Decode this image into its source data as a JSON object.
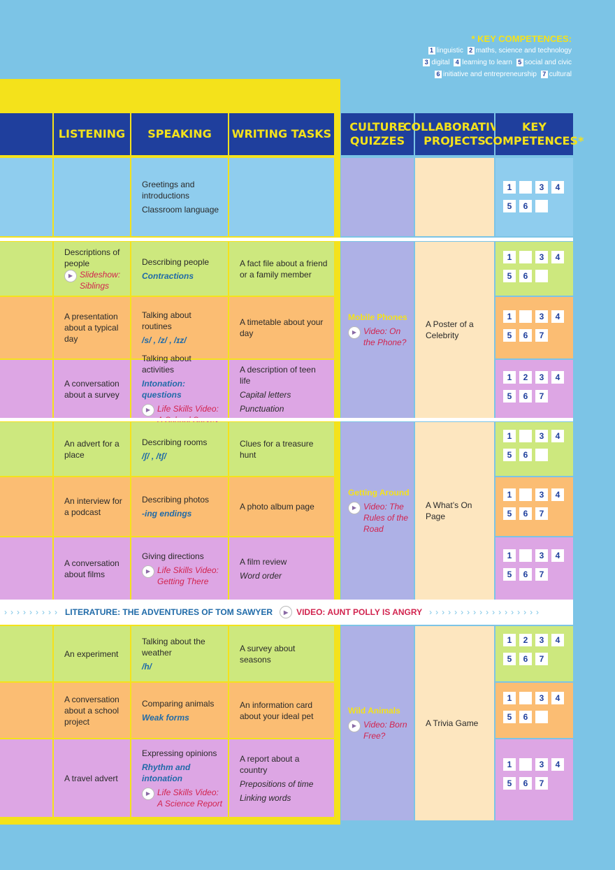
{
  "key": {
    "title": "* KEY COMPETENCES:",
    "rows": [
      [
        {
          "n": "1",
          "t": "linguistic"
        },
        {
          "n": "2",
          "t": "maths, science and technology"
        }
      ],
      [
        {
          "n": "3",
          "t": "digital"
        },
        {
          "n": "4",
          "t": "learning to learn"
        },
        {
          "n": "5",
          "t": "social and civic"
        }
      ],
      [
        {
          "n": "6",
          "t": "initiative and entrepreneurship"
        },
        {
          "n": "7",
          "t": "cultural"
        }
      ]
    ]
  },
  "headers": {
    "listening": "LISTENING",
    "speaking": "SPEAKING",
    "writing": "WRITING TASKS",
    "culture": "CULTURE QUIZZES",
    "projects": "COLLABORATIVE PROJECTS",
    "key": "KEY COMPETENCES*"
  },
  "intro": {
    "speaking": [
      "Greetings and introductions",
      "Classroom language"
    ],
    "badges": [
      "1",
      "",
      "3",
      "4",
      "5",
      "6",
      ""
    ]
  },
  "rows": [
    {
      "listening": "Descriptions of people",
      "listening_video": "Slideshow: Siblings",
      "speaking": "Describing people",
      "speaking_bold": "Contractions",
      "writing": "A fact file about a friend or a family member",
      "badges": [
        "1",
        "",
        "3",
        "4",
        "5",
        "6",
        ""
      ]
    },
    {
      "listening": "A presentation about a typical day",
      "speaking": "Talking about routines",
      "speaking_bold": "/s/ , /z/ , /ɪz/",
      "writing": "A timetable about your day",
      "badges": [
        "1",
        "",
        "3",
        "4",
        "5",
        "6",
        "7"
      ]
    },
    {
      "listening": "A conversation about a survey",
      "speaking": "Talking about activities",
      "speaking_bold": "Intonation: questions",
      "speaking_video": "Life Skills Video: A School Survey",
      "writing": "A description of teen life",
      "writing_italic": [
        "Capital letters",
        "Punctuation"
      ],
      "badges": [
        "1",
        "2",
        "3",
        "4",
        "5",
        "6",
        "7"
      ]
    },
    {
      "listening": "An advert for a place",
      "speaking": "Describing rooms",
      "speaking_bold": "/ʃ/ , /tʃ/",
      "writing": "Clues for a treasure hunt",
      "badges": [
        "1",
        "",
        "3",
        "4",
        "5",
        "6",
        ""
      ]
    },
    {
      "listening": "An interview for a podcast",
      "speaking": "Describing photos",
      "speaking_bold": "-ing endings",
      "writing": "A photo album page",
      "badges": [
        "1",
        "",
        "3",
        "4",
        "5",
        "6",
        "7"
      ]
    },
    {
      "listening": "A conversation about films",
      "speaking": "Giving directions",
      "speaking_video": "Life Skills Video: Getting There",
      "writing": "A film review",
      "writing_italic": [
        "Word order"
      ],
      "badges": [
        "1",
        "",
        "3",
        "4",
        "5",
        "6",
        "7"
      ]
    },
    {
      "listening": "An experiment",
      "speaking": "Talking about the weather",
      "speaking_bold": "/h/",
      "writing": "A survey about seasons",
      "badges": [
        "1",
        "2",
        "3",
        "4",
        "5",
        "6",
        "7"
      ]
    },
    {
      "listening": "A conversation about a school project",
      "speaking": "Comparing animals",
      "speaking_bold": "Weak forms",
      "writing": "An information card about your ideal pet",
      "badges": [
        "1",
        "",
        "3",
        "4",
        "5",
        "6",
        ""
      ]
    },
    {
      "listening": "A travel advert",
      "speaking": "Expressing opinions",
      "speaking_bold": "Rhythm and intonation",
      "speaking_video": "Life Skills Video: A Science Report",
      "writing": "A report about a country",
      "writing_italic": [
        "Prepositions of time",
        "Linking words"
      ],
      "badges": [
        "1",
        "",
        "3",
        "4",
        "5",
        "6",
        "7"
      ]
    }
  ],
  "units": [
    {
      "culture_title": "Mobile Phones",
      "culture_video": "Video: On the Phone?",
      "project": "A Poster of a Celebrity"
    },
    {
      "culture_title": "Getting Around",
      "culture_video": "Video: The Rules of the Road",
      "project": "A What’s On Page"
    },
    {
      "culture_title": "Wild Animals",
      "culture_video": "Video: Born Free?",
      "project": "A Trivia Game"
    }
  ],
  "banner": {
    "literature": "LITERATURE: THE ADVENTURES OF TOM SAWYER",
    "video": "VIDEO: AUNT POLLY IS ANGRY"
  },
  "colors": {
    "background": "#7cc4e6",
    "header": "#1f3f9d",
    "accent_yellow": "#f4e21b",
    "green": "#cde87e",
    "orange": "#fbbd73",
    "purple": "#dda6e4",
    "lavender": "#aeb1e6",
    "cream": "#fde6bf"
  }
}
